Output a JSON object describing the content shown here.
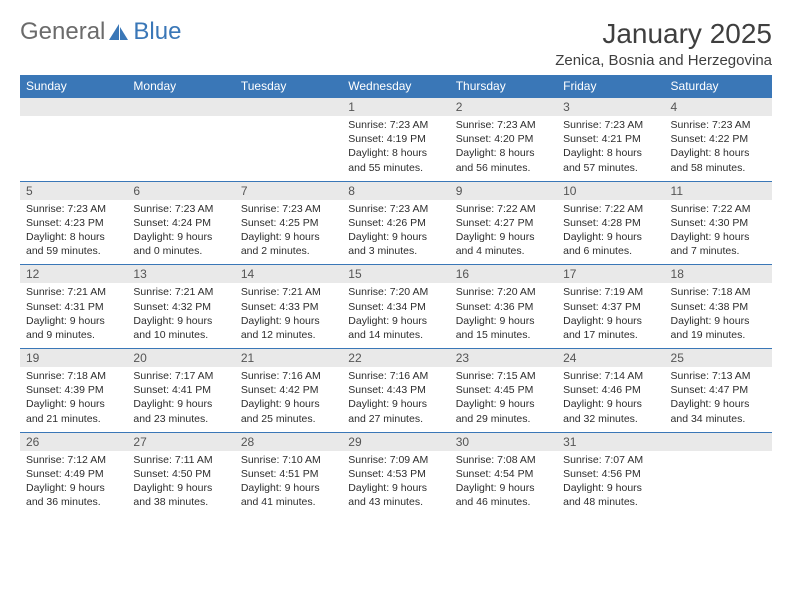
{
  "logo": {
    "text1": "General",
    "text2": "Blue"
  },
  "title": "January 2025",
  "location": "Zenica, Bosnia and Herzegovina",
  "colors": {
    "header_bg": "#3a77b7",
    "header_text": "#ffffff",
    "daynum_bg": "#e9e9e9",
    "border": "#3a77b7",
    "text": "#2d2d2d",
    "background": "#ffffff"
  },
  "day_names": [
    "Sunday",
    "Monday",
    "Tuesday",
    "Wednesday",
    "Thursday",
    "Friday",
    "Saturday"
  ],
  "weeks": [
    [
      {
        "num": "",
        "lines": []
      },
      {
        "num": "",
        "lines": []
      },
      {
        "num": "",
        "lines": []
      },
      {
        "num": "1",
        "lines": [
          "Sunrise: 7:23 AM",
          "Sunset: 4:19 PM",
          "Daylight: 8 hours and 55 minutes."
        ]
      },
      {
        "num": "2",
        "lines": [
          "Sunrise: 7:23 AM",
          "Sunset: 4:20 PM",
          "Daylight: 8 hours and 56 minutes."
        ]
      },
      {
        "num": "3",
        "lines": [
          "Sunrise: 7:23 AM",
          "Sunset: 4:21 PM",
          "Daylight: 8 hours and 57 minutes."
        ]
      },
      {
        "num": "4",
        "lines": [
          "Sunrise: 7:23 AM",
          "Sunset: 4:22 PM",
          "Daylight: 8 hours and 58 minutes."
        ]
      }
    ],
    [
      {
        "num": "5",
        "lines": [
          "Sunrise: 7:23 AM",
          "Sunset: 4:23 PM",
          "Daylight: 8 hours and 59 minutes."
        ]
      },
      {
        "num": "6",
        "lines": [
          "Sunrise: 7:23 AM",
          "Sunset: 4:24 PM",
          "Daylight: 9 hours and 0 minutes."
        ]
      },
      {
        "num": "7",
        "lines": [
          "Sunrise: 7:23 AM",
          "Sunset: 4:25 PM",
          "Daylight: 9 hours and 2 minutes."
        ]
      },
      {
        "num": "8",
        "lines": [
          "Sunrise: 7:23 AM",
          "Sunset: 4:26 PM",
          "Daylight: 9 hours and 3 minutes."
        ]
      },
      {
        "num": "9",
        "lines": [
          "Sunrise: 7:22 AM",
          "Sunset: 4:27 PM",
          "Daylight: 9 hours and 4 minutes."
        ]
      },
      {
        "num": "10",
        "lines": [
          "Sunrise: 7:22 AM",
          "Sunset: 4:28 PM",
          "Daylight: 9 hours and 6 minutes."
        ]
      },
      {
        "num": "11",
        "lines": [
          "Sunrise: 7:22 AM",
          "Sunset: 4:30 PM",
          "Daylight: 9 hours and 7 minutes."
        ]
      }
    ],
    [
      {
        "num": "12",
        "lines": [
          "Sunrise: 7:21 AM",
          "Sunset: 4:31 PM",
          "Daylight: 9 hours and 9 minutes."
        ]
      },
      {
        "num": "13",
        "lines": [
          "Sunrise: 7:21 AM",
          "Sunset: 4:32 PM",
          "Daylight: 9 hours and 10 minutes."
        ]
      },
      {
        "num": "14",
        "lines": [
          "Sunrise: 7:21 AM",
          "Sunset: 4:33 PM",
          "Daylight: 9 hours and 12 minutes."
        ]
      },
      {
        "num": "15",
        "lines": [
          "Sunrise: 7:20 AM",
          "Sunset: 4:34 PM",
          "Daylight: 9 hours and 14 minutes."
        ]
      },
      {
        "num": "16",
        "lines": [
          "Sunrise: 7:20 AM",
          "Sunset: 4:36 PM",
          "Daylight: 9 hours and 15 minutes."
        ]
      },
      {
        "num": "17",
        "lines": [
          "Sunrise: 7:19 AM",
          "Sunset: 4:37 PM",
          "Daylight: 9 hours and 17 minutes."
        ]
      },
      {
        "num": "18",
        "lines": [
          "Sunrise: 7:18 AM",
          "Sunset: 4:38 PM",
          "Daylight: 9 hours and 19 minutes."
        ]
      }
    ],
    [
      {
        "num": "19",
        "lines": [
          "Sunrise: 7:18 AM",
          "Sunset: 4:39 PM",
          "Daylight: 9 hours and 21 minutes."
        ]
      },
      {
        "num": "20",
        "lines": [
          "Sunrise: 7:17 AM",
          "Sunset: 4:41 PM",
          "Daylight: 9 hours and 23 minutes."
        ]
      },
      {
        "num": "21",
        "lines": [
          "Sunrise: 7:16 AM",
          "Sunset: 4:42 PM",
          "Daylight: 9 hours and 25 minutes."
        ]
      },
      {
        "num": "22",
        "lines": [
          "Sunrise: 7:16 AM",
          "Sunset: 4:43 PM",
          "Daylight: 9 hours and 27 minutes."
        ]
      },
      {
        "num": "23",
        "lines": [
          "Sunrise: 7:15 AM",
          "Sunset: 4:45 PM",
          "Daylight: 9 hours and 29 minutes."
        ]
      },
      {
        "num": "24",
        "lines": [
          "Sunrise: 7:14 AM",
          "Sunset: 4:46 PM",
          "Daylight: 9 hours and 32 minutes."
        ]
      },
      {
        "num": "25",
        "lines": [
          "Sunrise: 7:13 AM",
          "Sunset: 4:47 PM",
          "Daylight: 9 hours and 34 minutes."
        ]
      }
    ],
    [
      {
        "num": "26",
        "lines": [
          "Sunrise: 7:12 AM",
          "Sunset: 4:49 PM",
          "Daylight: 9 hours and 36 minutes."
        ]
      },
      {
        "num": "27",
        "lines": [
          "Sunrise: 7:11 AM",
          "Sunset: 4:50 PM",
          "Daylight: 9 hours and 38 minutes."
        ]
      },
      {
        "num": "28",
        "lines": [
          "Sunrise: 7:10 AM",
          "Sunset: 4:51 PM",
          "Daylight: 9 hours and 41 minutes."
        ]
      },
      {
        "num": "29",
        "lines": [
          "Sunrise: 7:09 AM",
          "Sunset: 4:53 PM",
          "Daylight: 9 hours and 43 minutes."
        ]
      },
      {
        "num": "30",
        "lines": [
          "Sunrise: 7:08 AM",
          "Sunset: 4:54 PM",
          "Daylight: 9 hours and 46 minutes."
        ]
      },
      {
        "num": "31",
        "lines": [
          "Sunrise: 7:07 AM",
          "Sunset: 4:56 PM",
          "Daylight: 9 hours and 48 minutes."
        ]
      },
      {
        "num": "",
        "lines": []
      }
    ]
  ]
}
